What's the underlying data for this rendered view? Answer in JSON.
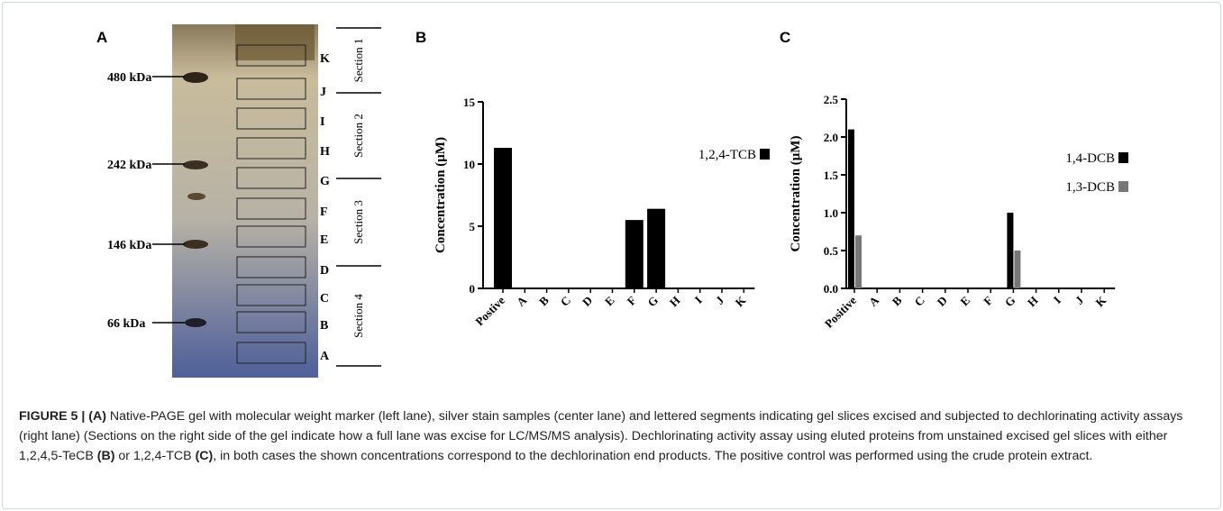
{
  "gel": {
    "panel_label": "A",
    "markers": [
      "480 kDa",
      "242 kDa",
      "146 kDa",
      "66 kDa"
    ],
    "slices": [
      "K",
      "J",
      "I",
      "H",
      "G",
      "F",
      "E",
      "D",
      "C",
      "B",
      "A"
    ],
    "sections": [
      "Section 1",
      "Section 2",
      "Section 3",
      "Section 4"
    ]
  },
  "chart_data": [
    {
      "type": "bar",
      "panel_label": "B",
      "y_label": "Concentration (μM)",
      "categories": [
        "Postive",
        "A",
        "B",
        "C",
        "D",
        "E",
        "F",
        "G",
        "H",
        "I",
        "J",
        "K"
      ],
      "series": [
        {
          "name": "1,2,4-TCB",
          "color": "#000000",
          "values": [
            11.3,
            0,
            0,
            0,
            0,
            0,
            5.5,
            6.4,
            0,
            0,
            0,
            0
          ]
        }
      ],
      "ylim": [
        0,
        15
      ],
      "yticks": [
        0,
        5,
        10,
        15
      ]
    },
    {
      "type": "bar",
      "panel_label": "C",
      "y_label": "Concentration (μM)",
      "categories": [
        "Positive",
        "A",
        "B",
        "C",
        "D",
        "E",
        "F",
        "G",
        "H",
        "I",
        "J",
        "K"
      ],
      "series": [
        {
          "name": "1,4-DCB",
          "color": "#000000",
          "values": [
            2.1,
            0,
            0,
            0,
            0,
            0,
            0,
            1.0,
            0,
            0,
            0,
            0
          ]
        },
        {
          "name": "1,3-DCB",
          "color": "#777777",
          "values": [
            0.7,
            0,
            0,
            0,
            0,
            0,
            0,
            0.5,
            0,
            0,
            0,
            0
          ]
        }
      ],
      "ylim": [
        0,
        2.5
      ],
      "yticks": [
        {
          "value": 0,
          "label": "0.0"
        },
        0.5,
        {
          "value": 1,
          "label": "1.0"
        },
        1.5,
        {
          "value": 2,
          "label": "2.0"
        },
        2.5
      ]
    }
  ],
  "caption": {
    "parts": [
      "FIGURE 5 | (A)",
      " Native-PAGE gel with molecular weight marker (left lane), silver stain samples (center lane) and lettered segments indicating gel slices excised and subjected to dechlorinating activity assays (right lane) (Sections on the right side of the gel indicate how a full lane was excise for LC/MS/MS analysis). Dechlorinating activity assay using eluted proteins from unstained excised gel slices with either 1,2,4,5-TeCB ",
      "(B)",
      " or 1,2,4-TCB ",
      "(C)",
      ", in both cases the shown concentrations correspond to the dechlorination end products. The positive control was performed using the crude protein extract."
    ]
  }
}
